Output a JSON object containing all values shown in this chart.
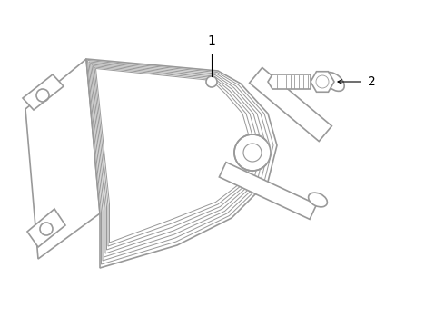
{
  "bg_color": "#ffffff",
  "line_color": "#999999",
  "text_color": "#000000",
  "label1_text": "1",
  "label2_text": "2"
}
